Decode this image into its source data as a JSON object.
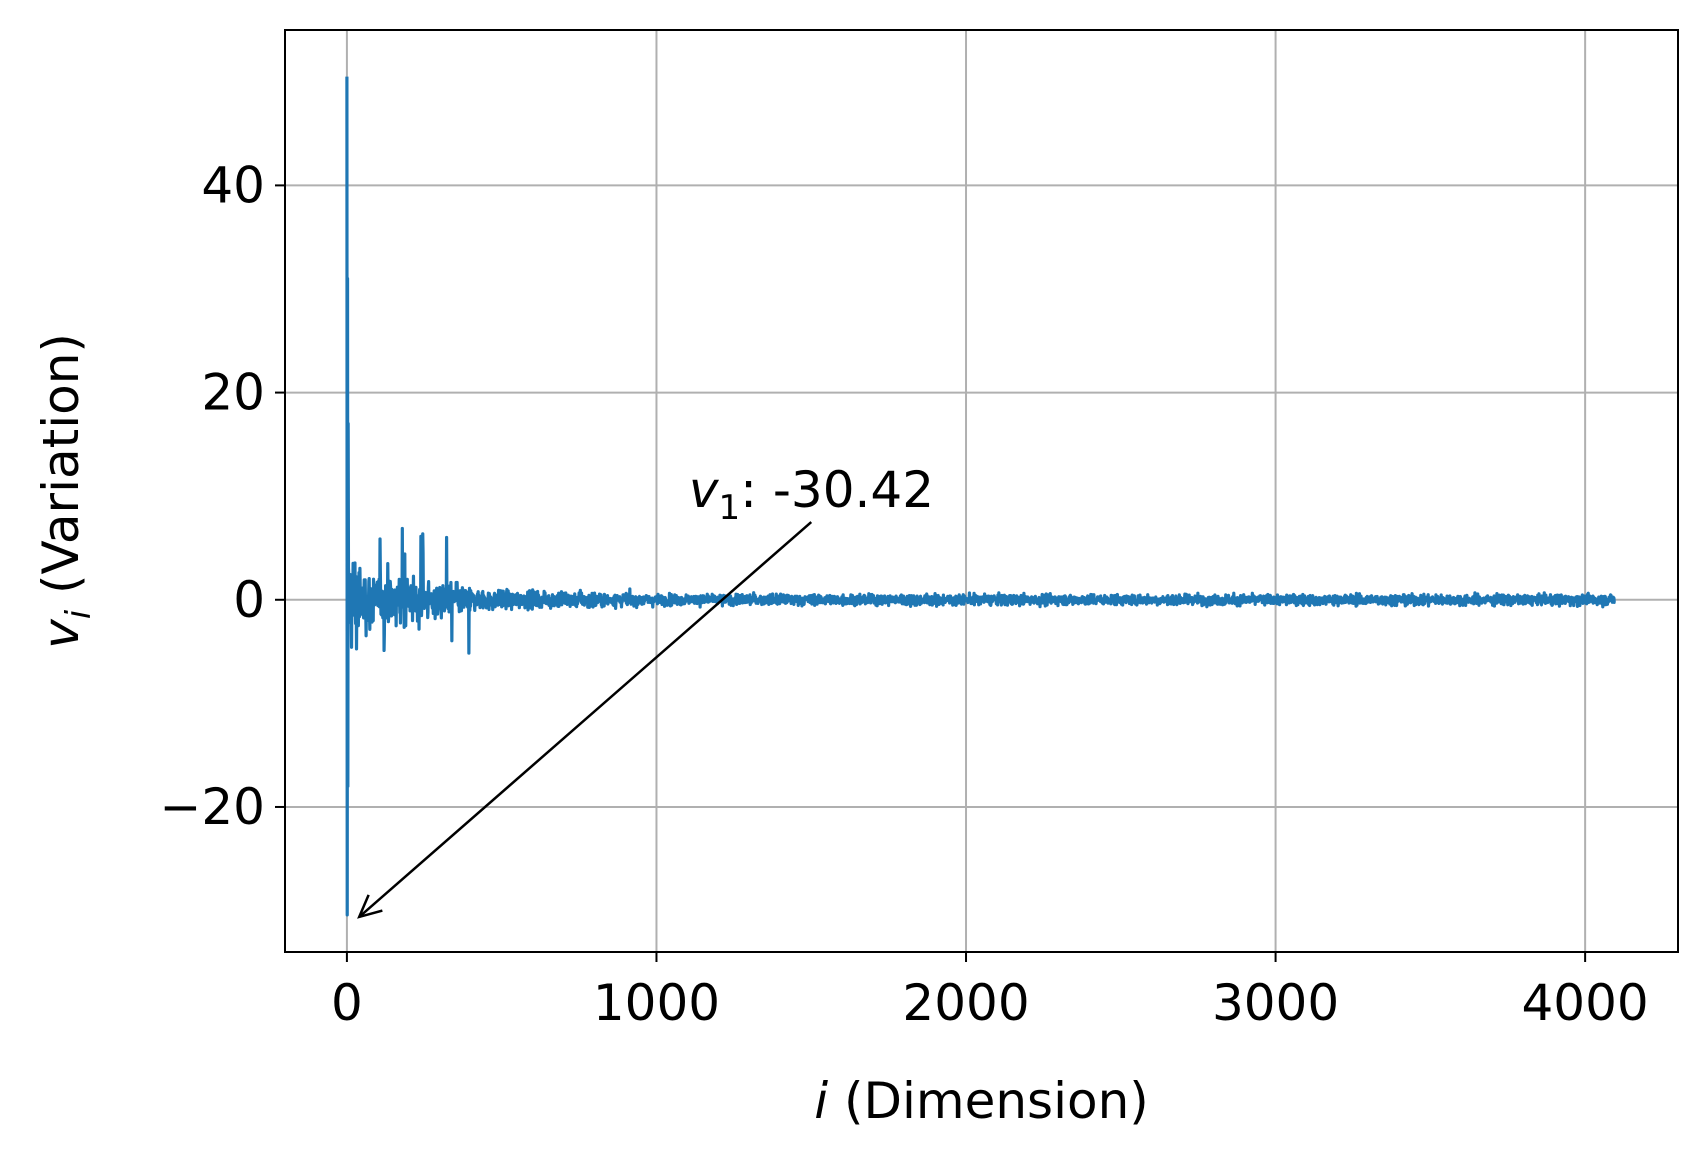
{
  "chart_data": {
    "type": "line",
    "title": "",
    "xlabel": {
      "var": "i",
      "text": " (Dimension)"
    },
    "ylabel": {
      "var": "v",
      "sub": "i",
      "text": " (Variation)"
    },
    "xlim": [
      -200,
      4300
    ],
    "ylim": [
      -34,
      55
    ],
    "xticks": [
      0,
      1000,
      2000,
      3000,
      4000
    ],
    "yticks": [
      -20,
      0,
      20,
      40
    ],
    "xtick_labels": [
      "0",
      "1000",
      "2000",
      "3000",
      "4000"
    ],
    "ytick_labels": [
      "−20",
      "0",
      "20",
      "40"
    ],
    "grid": true,
    "line_color": "#1f77b4",
    "series": [
      {
        "n_points": 4096,
        "values_summary": {
          "v_1": -30.42,
          "max_value_near_start": 50.5,
          "early_dims_0_to_40_range": [
            -9,
            31
          ],
          "dims_40_to_400_range": [
            -7,
            8
          ],
          "dims_400_to_1000_range": [
            -2.5,
            2
          ],
          "dims_1000_to_4096_range": [
            -1.5,
            1.5
          ]
        }
      }
    ],
    "annotation": {
      "var": "v",
      "sub": "1",
      "text": ": -30.42",
      "point": [
        1,
        -30.42
      ],
      "text_at": [
        1150,
        10.5
      ],
      "arrow_from": [
        1500,
        7.5
      ]
    }
  }
}
